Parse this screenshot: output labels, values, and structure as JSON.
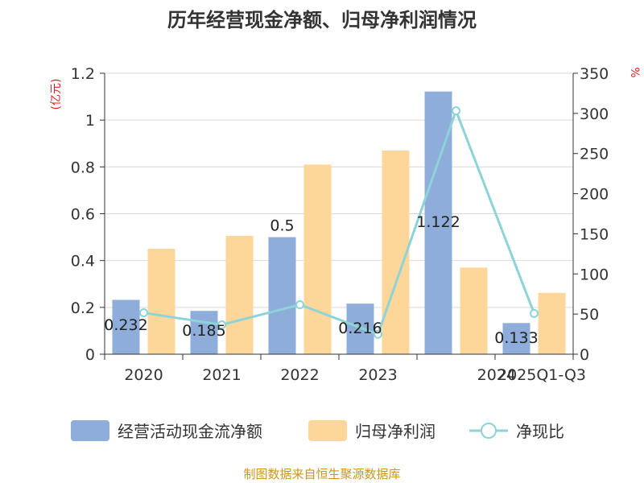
{
  "chart_data": {
    "type": "bar",
    "title": "历年经营现金净额、归母净利润情况",
    "categories": [
      "2020",
      "2021",
      "2022",
      "2023",
      "2024",
      "2025Q1-Q3"
    ],
    "left_axis": {
      "unit": "(亿元)",
      "ylim": [
        0,
        1.2
      ],
      "ticks": [
        "0",
        "0.2",
        "0.4",
        "0.6",
        "0.8",
        "1",
        "1.2"
      ]
    },
    "right_axis": {
      "unit": "%",
      "ylim": [
        0,
        350
      ],
      "ticks": [
        "0",
        "50",
        "100",
        "150",
        "200",
        "250",
        "300",
        "350"
      ]
    },
    "series": [
      {
        "name": "经营活动现金流净额",
        "kind": "bar",
        "axis": "left",
        "color": "#8eadda",
        "values": [
          0.232,
          0.185,
          0.5,
          0.216,
          1.122,
          0.133
        ],
        "labels": [
          "0.232",
          "0.185",
          "0.5",
          "0.216",
          "1.122",
          "0.133"
        ]
      },
      {
        "name": "归母净利润",
        "kind": "bar",
        "axis": "left",
        "color": "#fdd699",
        "values": [
          0.45,
          0.505,
          0.81,
          0.87,
          0.37,
          0.262
        ]
      },
      {
        "name": "净现比",
        "kind": "line",
        "axis": "right",
        "color": "#8dd3d8",
        "values": [
          51.6,
          36.6,
          61.7,
          24.8,
          303.2,
          50.8
        ]
      }
    ],
    "grid": true,
    "legend": "bottom"
  },
  "footer": {
    "source": "制图数据来自恒生聚源数据库"
  }
}
